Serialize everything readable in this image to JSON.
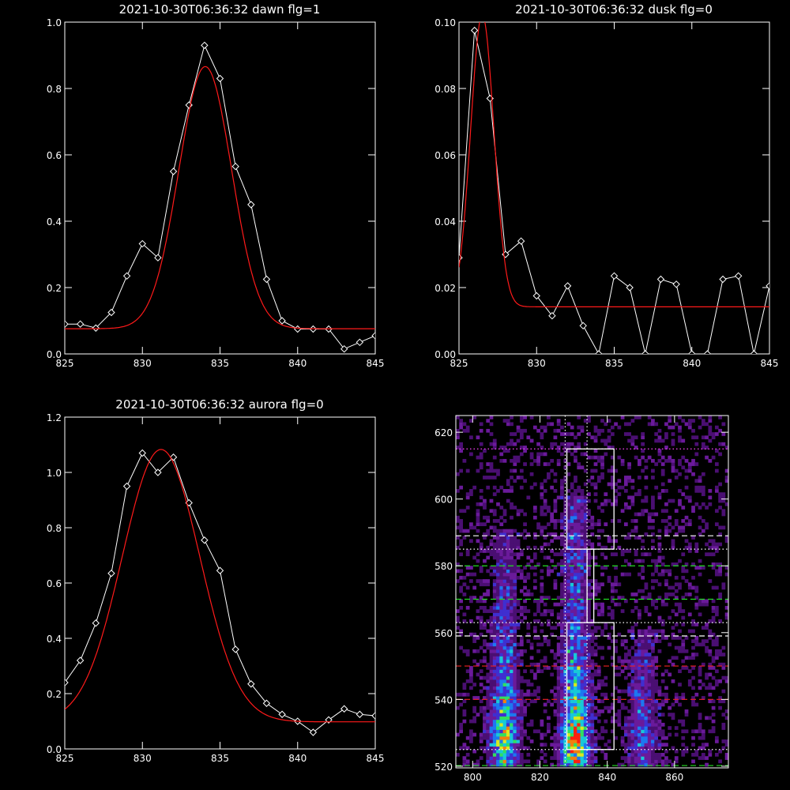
{
  "colors": {
    "background": "#000000",
    "axes": "#ffffff",
    "data_line": "#ffffff",
    "fit_line": "#ff1a1a",
    "guide_green": "#22dd22",
    "guide_red": "#ee2222",
    "guide_white": "#ffffff",
    "guide_magenta": "#ff44ff"
  },
  "chart_data": [
    {
      "id": "dawn",
      "type": "line",
      "title": "2021-10-30T06:36:32 dawn flg=1",
      "xlabel": "",
      "ylabel": "",
      "xlim": [
        825,
        845
      ],
      "ylim": [
        0,
        1.0
      ],
      "xticks": [
        825,
        830,
        835,
        840,
        845
      ],
      "xtick_labels": [
        "825",
        "830",
        "835",
        "840",
        "845"
      ],
      "yticks": [
        0,
        0.2,
        0.4,
        0.6,
        0.8,
        1.0
      ],
      "ytick_labels": [
        "0.0",
        "0.2",
        "0.4",
        "0.6",
        "0.8",
        "1.0"
      ],
      "series": [
        {
          "style": "white line with diamond markers",
          "x": [
            825,
            826,
            827,
            828,
            829,
            830,
            831,
            832,
            833,
            834,
            835,
            836,
            837,
            838,
            839,
            840,
            841,
            842,
            843,
            844,
            845
          ],
          "y": [
            0.09,
            0.09,
            0.078,
            0.125,
            0.235,
            0.332,
            0.29,
            0.55,
            0.75,
            0.93,
            0.83,
            0.565,
            0.45,
            0.225,
            0.1,
            0.075,
            0.075,
            0.075,
            0.015,
            0.035,
            0.055
          ]
        },
        {
          "style": "red gaussian fit",
          "fit": {
            "amplitude": 0.79,
            "center": 834.05,
            "sigma": 1.7,
            "offset": 0.076
          }
        }
      ]
    },
    {
      "id": "dusk",
      "type": "line",
      "title": "2021-10-30T06:36:32 dusk flg=0",
      "xlabel": "",
      "ylabel": "",
      "xlim": [
        825,
        845
      ],
      "ylim": [
        0,
        0.1
      ],
      "xticks": [
        825,
        830,
        835,
        840,
        845
      ],
      "xtick_labels": [
        "825",
        "830",
        "835",
        "840",
        "845"
      ],
      "yticks": [
        0,
        0.02,
        0.04,
        0.06,
        0.08,
        0.1
      ],
      "ytick_labels": [
        "0.00",
        "0.02",
        "0.04",
        "0.06",
        "0.08",
        "0.10"
      ],
      "series": [
        {
          "style": "white line with diamond markers",
          "x": [
            825,
            826,
            827,
            828,
            829,
            830,
            831,
            832,
            833,
            834,
            835,
            836,
            837,
            838,
            839,
            840,
            841,
            842,
            843,
            844,
            845
          ],
          "y": [
            0.029,
            0.0975,
            0.077,
            0.03,
            0.034,
            0.0175,
            0.0115,
            0.0205,
            0.0085,
            0.0,
            0.0235,
            0.02,
            0.0,
            0.0225,
            0.021,
            0.0,
            0.0,
            0.0225,
            0.0235,
            0.0,
            0.0205
          ]
        },
        {
          "style": "red gaussian fit",
          "fit": {
            "amplitude": 0.088,
            "center": 826.5,
            "sigma": 0.75,
            "offset": 0.0142
          }
        }
      ]
    },
    {
      "id": "aurora",
      "type": "line",
      "title": "2021-10-30T06:36:32 aurora flg=0",
      "xlabel": "",
      "ylabel": "",
      "xlim": [
        825,
        845
      ],
      "ylim": [
        0,
        1.2
      ],
      "xticks": [
        825,
        830,
        835,
        840,
        845
      ],
      "xtick_labels": [
        "825",
        "830",
        "835",
        "840",
        "845"
      ],
      "yticks": [
        0,
        0.2,
        0.4,
        0.6,
        0.8,
        1.0,
        1.2
      ],
      "ytick_labels": [
        "0.0",
        "0.2",
        "0.4",
        "0.6",
        "0.8",
        "1.0",
        "1.2"
      ],
      "series": [
        {
          "style": "white line with diamond markers",
          "x": [
            825,
            826,
            827,
            828,
            829,
            830,
            831,
            832,
            833,
            834,
            835,
            836,
            837,
            838,
            839,
            840,
            841,
            842,
            843,
            844,
            845
          ],
          "y": [
            0.24,
            0.32,
            0.455,
            0.635,
            0.95,
            1.07,
            1.0,
            1.055,
            0.89,
            0.755,
            0.645,
            0.36,
            0.235,
            0.165,
            0.125,
            0.1,
            0.06,
            0.105,
            0.145,
            0.125,
            0.12
          ]
        },
        {
          "style": "red gaussian fit",
          "fit": {
            "amplitude": 0.985,
            "center": 831.2,
            "sigma": 2.5,
            "offset": 0.098
          }
        }
      ]
    },
    {
      "id": "image",
      "type": "heatmap",
      "title": "",
      "xlim": [
        795,
        876
      ],
      "ylim": [
        519.5,
        625
      ],
      "xticks": [
        800,
        820,
        840,
        860
      ],
      "xtick_labels": [
        "800",
        "820",
        "840",
        "860"
      ],
      "yticks": [
        520,
        540,
        560,
        580,
        600,
        620
      ],
      "ytick_labels": [
        "520",
        "540",
        "560",
        "580",
        "600",
        "620"
      ],
      "colormap": [
        "#000000",
        "#4a0f72",
        "#6a1a9a",
        "#3f2fd0",
        "#1d78f0",
        "#18c8d8",
        "#30e060",
        "#d8e820",
        "#f08010",
        "#ff2010"
      ],
      "emission_bands": [
        {
          "center_x": 809.5,
          "width": 3.0,
          "y_from": 519.5,
          "y_to": 590,
          "peak_y": 528,
          "peak": 0.78
        },
        {
          "center_x": 830.5,
          "width": 3.0,
          "y_from": 519.5,
          "y_to": 600,
          "peak_y": 527,
          "peak": 1.0
        },
        {
          "center_x": 850.5,
          "width": 3.0,
          "y_from": 519.5,
          "y_to": 560,
          "peak_y": 530,
          "peak": 0.45
        }
      ],
      "boxes": [
        {
          "x": [
            828,
            842
          ],
          "y": [
            525,
            563
          ]
        },
        {
          "x": [
            834,
            836
          ],
          "y": [
            563,
            585
          ]
        },
        {
          "x": [
            828,
            842
          ],
          "y": [
            585,
            615
          ]
        }
      ],
      "vlines": [
        {
          "x": 827.5,
          "style": "dotted",
          "color": "guide_white"
        },
        {
          "x": 834,
          "style": "dotted",
          "color": "guide_white"
        }
      ],
      "hlines": [
        {
          "y": 615,
          "style": "dotted",
          "color": "guide_magenta"
        },
        {
          "y": 589,
          "style": "dashed",
          "color": "guide_white"
        },
        {
          "y": 585,
          "style": "dotted",
          "color": "guide_white"
        },
        {
          "y": 580,
          "style": "dashed",
          "color": "guide_green"
        },
        {
          "y": 570,
          "style": "dashed",
          "color": "guide_green"
        },
        {
          "y": 563,
          "style": "dotted",
          "color": "guide_white"
        },
        {
          "y": 559,
          "style": "dashed",
          "color": "guide_white"
        },
        {
          "y": 550,
          "style": "dashed",
          "color": "guide_red"
        },
        {
          "y": 540,
          "style": "dashed",
          "color": "guide_red"
        },
        {
          "y": 525,
          "style": "dotted",
          "color": "guide_white"
        },
        {
          "y": 520.2,
          "style": "dashed",
          "color": "guide_green"
        }
      ]
    }
  ]
}
